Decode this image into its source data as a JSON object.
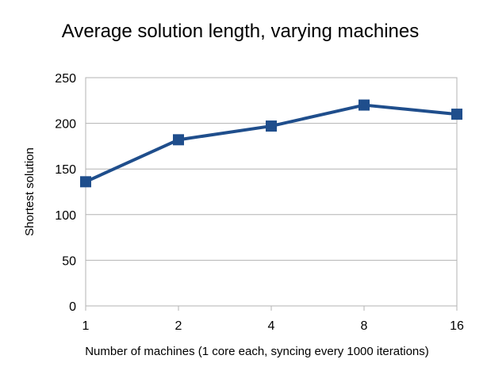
{
  "chart_data": {
    "type": "line",
    "title": "Average solution length, varying machines",
    "xlabel": "Number of machines (1 core each, syncing every 1000 iterations)",
    "ylabel": "Shortest solution",
    "categories": [
      "1",
      "2",
      "4",
      "8",
      "16"
    ],
    "series": [
      {
        "values": [
          136,
          182,
          197,
          220,
          210
        ]
      }
    ],
    "ylim": [
      0,
      250
    ],
    "yticks": [
      "0",
      "50",
      "100",
      "150",
      "200",
      "250"
    ],
    "grid": "horizontal",
    "legend": "none",
    "colors": {
      "series": "#1f4e8c",
      "grid": "#b3b3b3"
    }
  }
}
